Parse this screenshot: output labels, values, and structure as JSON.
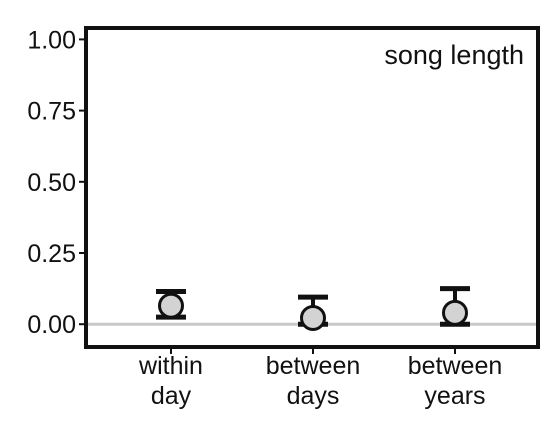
{
  "chart_data": {
    "type": "scatter",
    "annotation": "song length",
    "categories": [
      [
        "within",
        "day"
      ],
      [
        "between",
        "days"
      ],
      [
        "between",
        "years"
      ]
    ],
    "points": [
      {
        "category": "within day",
        "value": 0.065,
        "lower": 0.025,
        "upper": 0.115
      },
      {
        "category": "between days",
        "value": 0.022,
        "lower": 0.0,
        "upper": 0.095
      },
      {
        "category": "between years",
        "value": 0.04,
        "lower": 0.0,
        "upper": 0.125
      }
    ],
    "y_ticks": [
      "0.00",
      "0.25",
      "0.50",
      "0.75",
      "1.00"
    ],
    "y_tick_values": [
      0,
      0.25,
      0.5,
      0.75,
      1.0
    ],
    "ylim": [
      -0.08,
      1.04
    ],
    "reference_line": 0,
    "grid": false,
    "colors": {
      "marker_fill": "#d3d3d3",
      "marker_stroke": "#111111",
      "reference_line": "#c8c8c8",
      "frame": "#111111"
    }
  }
}
